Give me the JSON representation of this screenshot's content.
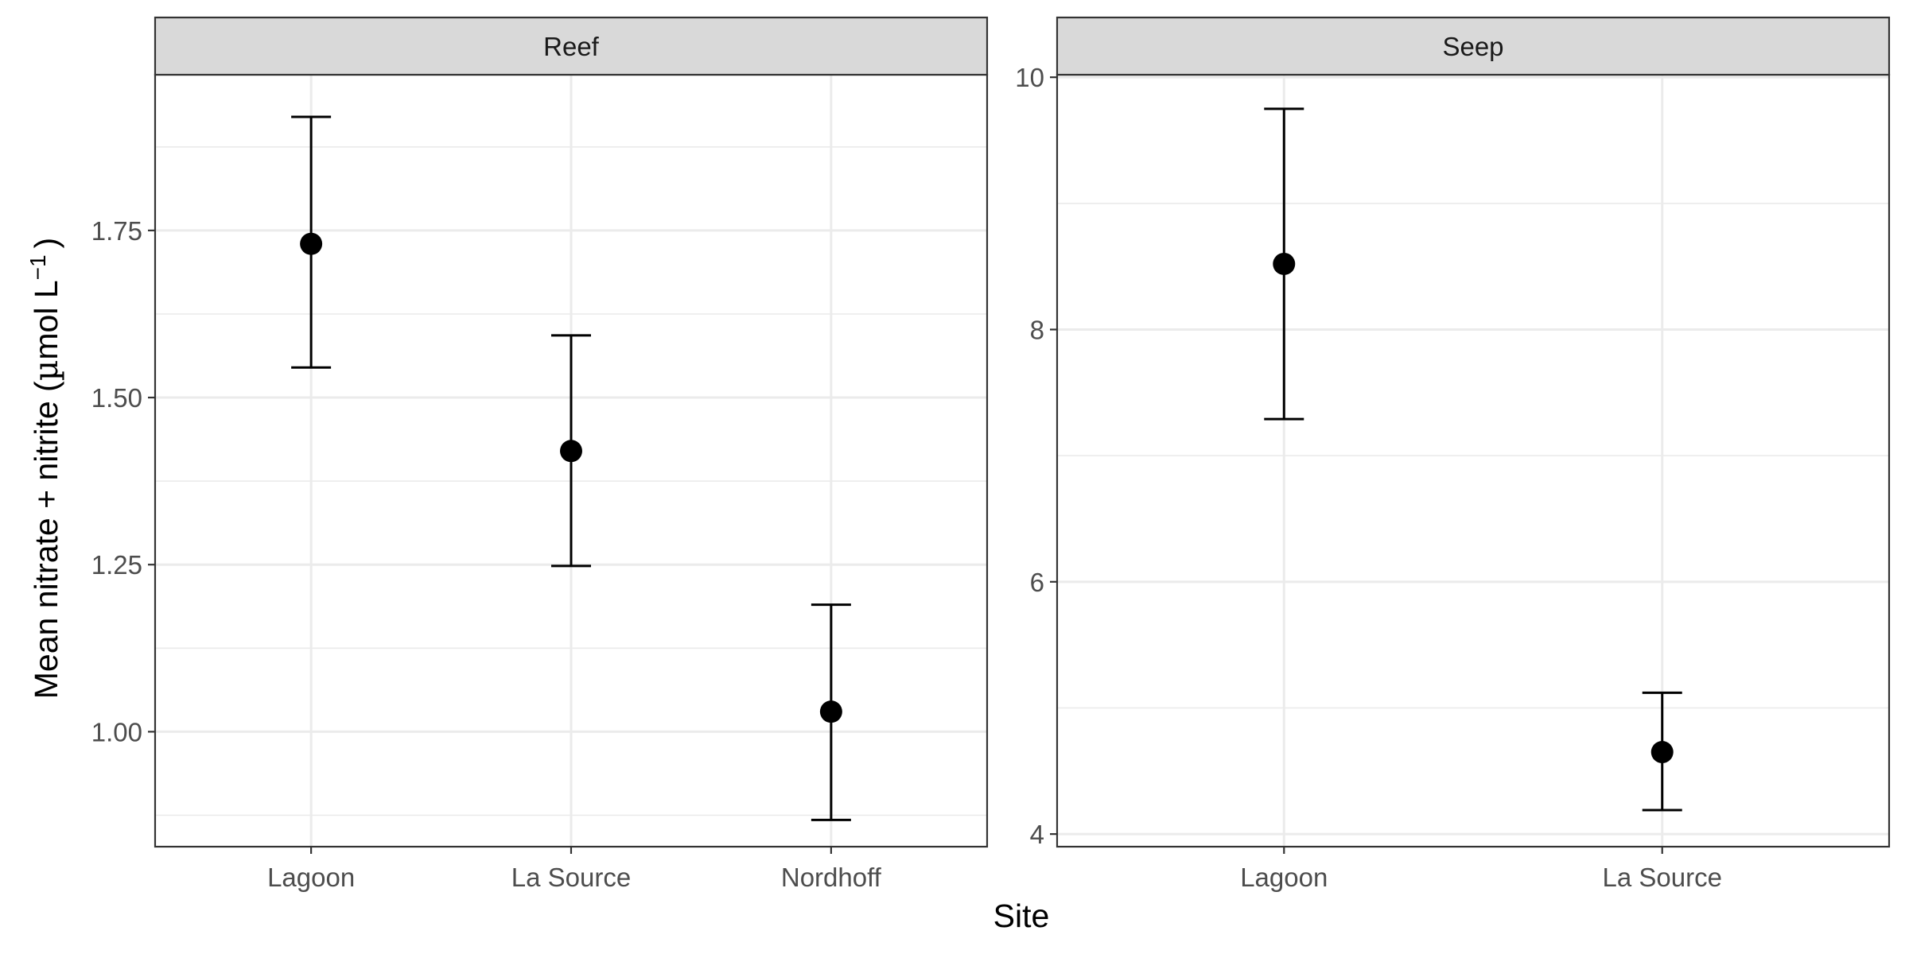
{
  "chart_data": {
    "type": "scatter",
    "xlabel": "Site",
    "ylabel_main": "Mean nitrate + nitrite (",
    "ylabel_mu": "µ",
    "ylabel_mol": "mol L",
    "ylabel_sup": "−1",
    "ylabel_close": ")",
    "panels": [
      {
        "name": "Reef",
        "categories": [
          "Lagoon",
          "La Source",
          "Nordhoff"
        ],
        "mean": [
          1.73,
          1.42,
          1.03
        ],
        "lower": [
          1.545,
          1.248,
          0.868
        ],
        "upper": [
          1.92,
          1.593,
          1.19
        ],
        "ylim": [
          0.828,
          1.983
        ],
        "yticks": [
          1.0,
          1.25,
          1.5,
          1.75
        ],
        "ytick_labels": [
          "1.00",
          "1.25",
          "1.50",
          "1.75"
        ],
        "yminor": [
          0.875,
          1.125,
          1.375,
          1.625,
          1.875
        ]
      },
      {
        "name": "Seep",
        "categories": [
          "Lagoon",
          "La Source"
        ],
        "mean": [
          8.52,
          4.65
        ],
        "lower": [
          7.29,
          4.19
        ],
        "upper": [
          9.75,
          5.12
        ],
        "ylim": [
          3.9,
          10.02
        ],
        "yticks": [
          4,
          6,
          8,
          10
        ],
        "ytick_labels": [
          "4",
          "6",
          "8",
          "10"
        ],
        "yminor": [
          5,
          7,
          9
        ]
      }
    ],
    "grid": true,
    "legend": "none"
  }
}
